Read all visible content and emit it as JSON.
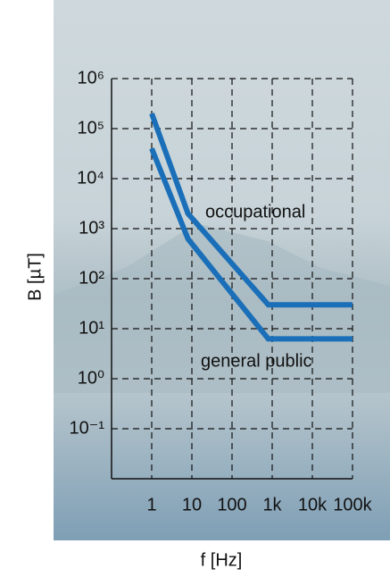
{
  "chart_data": {
    "type": "line",
    "x": [
      1,
      8,
      800,
      100000
    ],
    "series": [
      {
        "name": "occupational",
        "color": "#1a6fb8",
        "values": [
          200000,
          2000,
          30,
          30
        ]
      },
      {
        "name": "general public",
        "color": "#1a6fb8",
        "values": [
          40000,
          625,
          6.25,
          6.25
        ]
      }
    ],
    "xlabel": "f [Hz]",
    "ylabel": "B [µT]",
    "xscale": "log",
    "yscale": "log",
    "xlim": [
      0.1,
      100000
    ],
    "ylim": [
      0.01,
      1000000
    ],
    "xticks": [
      1,
      10,
      100,
      {
        "value": 1000,
        "label": "1k"
      },
      {
        "value": 10000,
        "label": "10k"
      },
      {
        "value": 100000,
        "label": "100k"
      }
    ],
    "yticks": [
      {
        "value": 0.1,
        "label": "10⁻¹"
      },
      {
        "value": 1,
        "label": "10⁰"
      },
      {
        "value": 10,
        "label": "10¹"
      },
      {
        "value": 100,
        "label": "10²"
      },
      {
        "value": 1000,
        "label": "10³"
      },
      {
        "value": 10000,
        "label": "10⁴"
      },
      {
        "value": 100000,
        "label": "10⁵"
      },
      {
        "value": 1000000,
        "label": "10⁶"
      }
    ],
    "grid": true
  }
}
